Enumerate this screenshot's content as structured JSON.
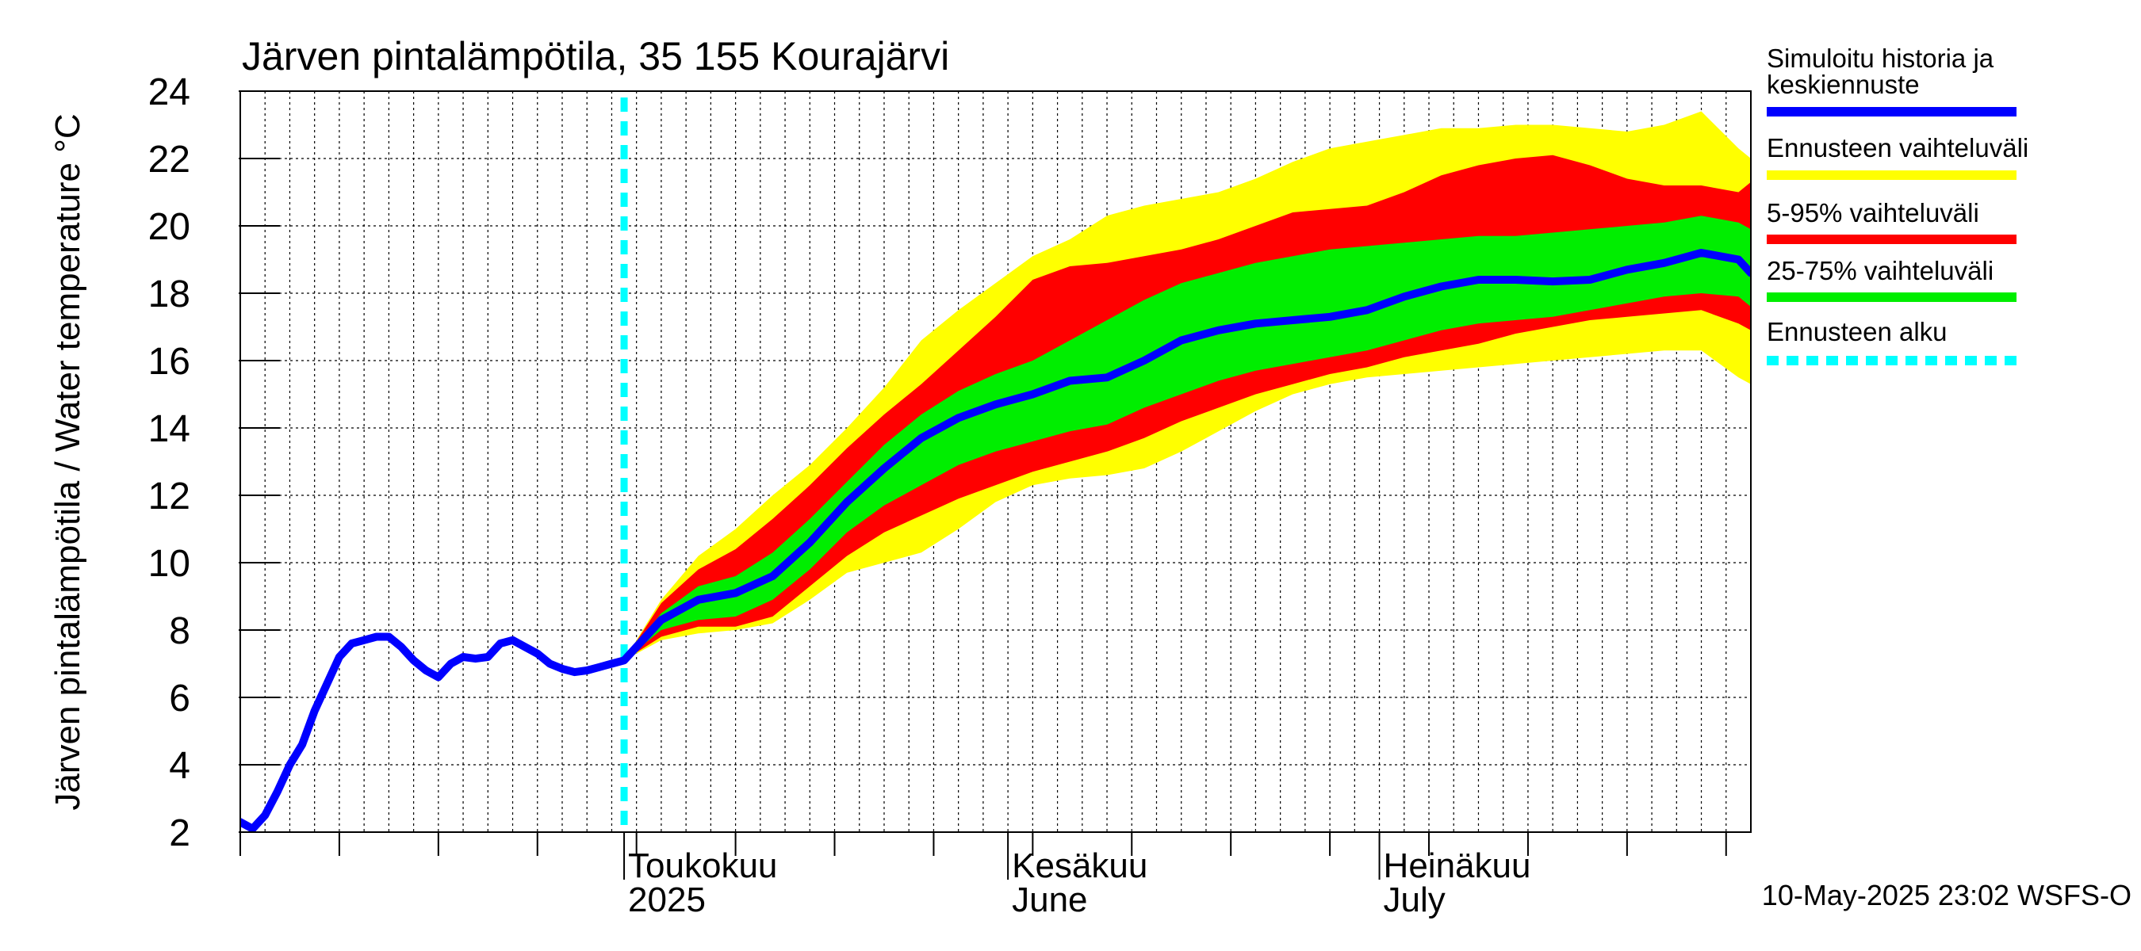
{
  "chart_data": {
    "type": "area",
    "title": "Järven pintalämpötila, 35 155 Kourajärvi",
    "ylabel": "Järven pintalämpötila / Water temperature °C",
    "xlabel": "",
    "ylim": [
      2,
      24
    ],
    "yticks": [
      2,
      4,
      6,
      8,
      10,
      12,
      14,
      16,
      18,
      20,
      22,
      24
    ],
    "xlim": [
      "2025-03-31",
      "2025-07-31"
    ],
    "grid": true,
    "legend_position": "right",
    "forecast_start": "2025-05-01",
    "month_ticks": [
      {
        "date": "2025-05-01",
        "line1": "Toukokuu",
        "line2": "2025"
      },
      {
        "date": "2025-06-01",
        "line1": "Kesäkuu",
        "line2": "June"
      },
      {
        "date": "2025-07-01",
        "line1": "Heinäkuu",
        "line2": "July"
      }
    ],
    "timestamp": "10-May-2025 23:02 WSFS-O",
    "colors": {
      "median": "#0000ff",
      "range": "#ffff00",
      "p5_95": "#ff0000",
      "p25_75": "#00ee00",
      "forecast_start": "#00ffff"
    },
    "legend": [
      {
        "key": "median",
        "label_lines": [
          "Simuloitu historia ja",
          "keskiennuste"
        ]
      },
      {
        "key": "range",
        "label_lines": [
          "Ennusteen vaihteluväli"
        ]
      },
      {
        "key": "p5_95",
        "label_lines": [
          "5-95% vaihteluväli"
        ]
      },
      {
        "key": "p25_75",
        "label_lines": [
          "25-75% vaihteluväli"
        ]
      },
      {
        "key": "forecast_start",
        "label_lines": [
          "Ennusteen alku"
        ]
      }
    ],
    "history": {
      "dates": [
        "2025-03-31",
        "2025-04-01",
        "2025-04-02",
        "2025-04-03",
        "2025-04-04",
        "2025-04-05",
        "2025-04-06",
        "2025-04-07",
        "2025-04-08",
        "2025-04-09",
        "2025-04-10",
        "2025-04-11",
        "2025-04-12",
        "2025-04-13",
        "2025-04-14",
        "2025-04-15",
        "2025-04-16",
        "2025-04-17",
        "2025-04-18",
        "2025-04-19",
        "2025-04-20",
        "2025-04-21",
        "2025-04-22",
        "2025-04-23",
        "2025-04-24",
        "2025-04-25",
        "2025-04-26",
        "2025-04-27",
        "2025-04-28",
        "2025-04-29",
        "2025-04-30",
        "2025-05-01"
      ],
      "values": [
        2.3,
        2.1,
        2.5,
        3.2,
        4.0,
        4.6,
        5.6,
        6.4,
        7.2,
        7.6,
        7.7,
        7.8,
        7.8,
        7.5,
        7.1,
        6.8,
        6.6,
        7.0,
        7.2,
        7.15,
        7.2,
        7.6,
        7.7,
        7.5,
        7.3,
        7.0,
        6.85,
        6.75,
        6.8,
        6.9,
        7.0,
        7.1
      ]
    },
    "forecast": {
      "dates": [
        "2025-05-01",
        "2025-05-04",
        "2025-05-07",
        "2025-05-10",
        "2025-05-13",
        "2025-05-16",
        "2025-05-19",
        "2025-05-22",
        "2025-05-25",
        "2025-05-28",
        "2025-05-31",
        "2025-06-03",
        "2025-06-06",
        "2025-06-09",
        "2025-06-12",
        "2025-06-15",
        "2025-06-18",
        "2025-06-21",
        "2025-06-24",
        "2025-06-27",
        "2025-06-30",
        "2025-07-03",
        "2025-07-06",
        "2025-07-09",
        "2025-07-12",
        "2025-07-15",
        "2025-07-18",
        "2025-07-21",
        "2025-07-24",
        "2025-07-27",
        "2025-07-30",
        "2025-07-31"
      ],
      "median": [
        7.1,
        8.3,
        8.9,
        9.1,
        9.6,
        10.6,
        11.8,
        12.8,
        13.7,
        14.3,
        14.7,
        15.0,
        15.4,
        15.5,
        16.0,
        16.6,
        16.9,
        17.1,
        17.2,
        17.3,
        17.5,
        17.9,
        18.2,
        18.4,
        18.4,
        18.35,
        18.4,
        18.7,
        18.9,
        19.2,
        19.0,
        18.6
      ],
      "p25": [
        7.1,
        8.0,
        8.3,
        8.4,
        8.9,
        9.8,
        10.9,
        11.7,
        12.3,
        12.9,
        13.3,
        13.6,
        13.9,
        14.1,
        14.6,
        15.0,
        15.4,
        15.7,
        15.9,
        16.1,
        16.3,
        16.6,
        16.9,
        17.1,
        17.2,
        17.3,
        17.5,
        17.7,
        17.9,
        18.0,
        17.9,
        17.6
      ],
      "p75": [
        7.1,
        8.5,
        9.3,
        9.6,
        10.3,
        11.3,
        12.4,
        13.5,
        14.4,
        15.1,
        15.6,
        16.0,
        16.6,
        17.2,
        17.8,
        18.3,
        18.6,
        18.9,
        19.1,
        19.3,
        19.4,
        19.5,
        19.6,
        19.7,
        19.7,
        19.8,
        19.9,
        20.0,
        20.1,
        20.3,
        20.1,
        19.9
      ],
      "p5": [
        7.1,
        7.8,
        8.1,
        8.1,
        8.4,
        9.3,
        10.2,
        10.9,
        11.4,
        11.9,
        12.3,
        12.7,
        13.0,
        13.3,
        13.7,
        14.2,
        14.6,
        15.0,
        15.3,
        15.6,
        15.8,
        16.1,
        16.3,
        16.5,
        16.8,
        17.0,
        17.2,
        17.3,
        17.4,
        17.5,
        17.1,
        16.9
      ],
      "p95": [
        7.1,
        8.8,
        9.8,
        10.4,
        11.3,
        12.3,
        13.4,
        14.4,
        15.3,
        16.3,
        17.3,
        18.4,
        18.8,
        18.9,
        19.1,
        19.3,
        19.6,
        20.0,
        20.4,
        20.5,
        20.6,
        21.0,
        21.5,
        21.8,
        22.0,
        22.1,
        21.8,
        21.4,
        21.2,
        21.2,
        21.0,
        21.3
      ],
      "min": [
        7.1,
        7.7,
        7.9,
        8.0,
        8.2,
        8.9,
        9.7,
        10.0,
        10.3,
        11.0,
        11.8,
        12.3,
        12.5,
        12.6,
        12.8,
        13.3,
        13.9,
        14.5,
        15.0,
        15.3,
        15.5,
        15.6,
        15.7,
        15.8,
        15.9,
        16.0,
        16.1,
        16.2,
        16.3,
        16.3,
        15.5,
        15.3
      ],
      "max": [
        7.1,
        8.9,
        10.2,
        11.0,
        12.0,
        12.9,
        14.0,
        15.2,
        16.6,
        17.5,
        18.3,
        19.1,
        19.6,
        20.3,
        20.6,
        20.8,
        21.0,
        21.4,
        21.9,
        22.3,
        22.5,
        22.7,
        22.9,
        22.9,
        23.0,
        23.0,
        22.9,
        22.8,
        23.0,
        23.4,
        22.3,
        22.0
      ]
    }
  }
}
